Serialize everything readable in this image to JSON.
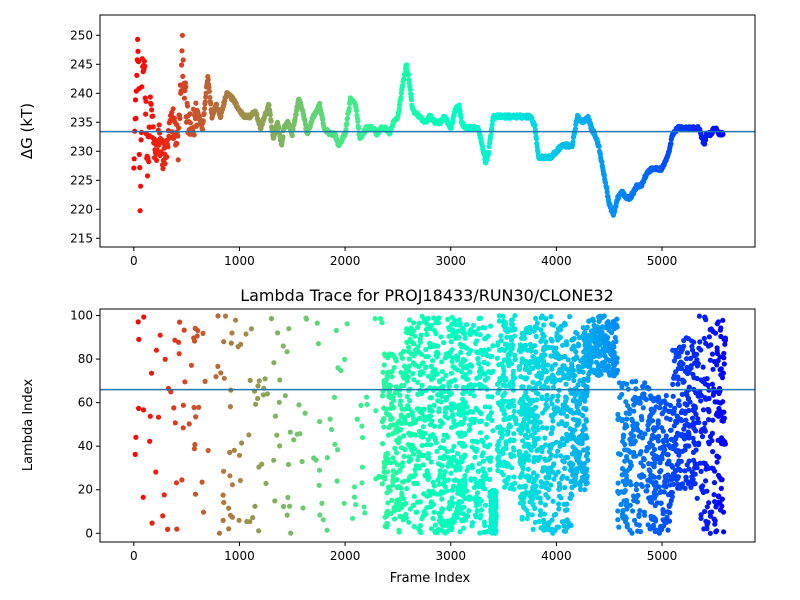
{
  "chart_data": [
    {
      "type": "scatter",
      "title": "",
      "xlabel": "",
      "ylabel": "ΔG (kT)",
      "xlim": [
        -320,
        5880
      ],
      "ylim": [
        213.5,
        253.5
      ],
      "xticks": [
        0,
        1000,
        2000,
        3000,
        4000,
        5000
      ],
      "yticks": [
        215,
        220,
        225,
        230,
        235,
        240,
        245,
        250
      ],
      "reference_line": 233.4,
      "reference_color": "#1f77b4",
      "colormap": "rainbow_r",
      "series": [
        {
          "kind": "random_walk",
          "x": [
            0,
            20,
            40,
            60,
            80,
            100,
            130,
            160,
            200,
            240,
            280,
            320,
            360,
            420,
            460,
            500,
            540,
            600,
            650,
            700,
            740,
            780,
            820,
            880,
            940,
            1000,
            1050,
            1100,
            1150,
            1200,
            1240,
            1280,
            1320,
            1360,
            1400,
            1420,
            1460,
            1500,
            1560,
            1600,
            1640,
            1700,
            1760,
            1800,
            1860,
            1900,
            1940,
            2000,
            2050,
            2100,
            2140,
            2200,
            2260,
            2300,
            2340,
            2380,
            2420,
            2460,
            2500,
            2540,
            2580,
            2600,
            2640,
            2700,
            2760,
            2800,
            2860,
            2900,
            2940,
            3000,
            3040,
            3080,
            3100,
            3140,
            3200,
            3260,
            3300,
            3330,
            3360,
            3400,
            3450,
            3500,
            3560,
            3600,
            3650,
            3700,
            3760,
            3800,
            3830,
            3860,
            3900,
            3950,
            4000,
            4050,
            4100,
            4150,
            4180,
            4200,
            4250,
            4300,
            4330,
            4360,
            4400,
            4450,
            4500,
            4540,
            4580,
            4620,
            4660,
            4700,
            4760,
            4800,
            4850,
            4900,
            4950,
            5000,
            5050,
            5080,
            5100,
            5150,
            5200,
            5250,
            5300,
            5350,
            5400,
            5420,
            5460,
            5500,
            5540,
            5580
          ],
          "y": [
            230,
            238,
            250,
            220,
            243,
            246,
            227,
            238,
            229,
            232,
            229,
            230,
            236,
            231,
            247,
            236,
            233,
            237,
            234,
            243,
            236,
            238,
            236,
            240,
            239,
            237,
            236,
            236,
            237,
            234,
            236,
            238,
            232,
            235,
            231,
            234,
            235,
            233,
            239,
            237,
            233,
            236,
            238,
            234,
            233,
            233,
            231,
            233,
            239,
            238,
            232,
            234,
            234,
            233,
            234,
            234,
            233,
            235,
            236,
            241,
            245,
            243,
            237,
            236,
            235,
            236,
            235,
            235,
            236,
            234,
            237,
            238,
            235,
            234,
            234,
            234,
            231,
            228,
            230,
            236,
            236,
            236,
            236,
            236,
            236,
            236,
            236,
            234,
            229,
            229,
            229,
            229,
            230,
            231,
            231,
            231,
            234,
            236,
            235,
            236,
            234,
            233,
            231,
            226,
            221,
            219,
            222,
            223,
            222,
            222,
            224,
            224,
            226,
            227,
            227,
            227,
            229,
            231,
            233,
            234,
            234,
            234,
            234,
            234,
            231,
            233,
            233,
            234,
            233,
            233
          ]
        }
      ]
    },
    {
      "type": "scatter",
      "title": "Lambda Trace for PROJ18433/RUN30/CLONE32",
      "xlabel": "Frame Index",
      "ylabel": "Lambda Index",
      "xlim": [
        -320,
        5880
      ],
      "ylim": [
        -4,
        103
      ],
      "xticks": [
        0,
        1000,
        2000,
        3000,
        4000,
        5000
      ],
      "yticks": [
        0,
        20,
        40,
        60,
        80,
        100
      ],
      "reference_line": 66,
      "reference_color": "#1f77b4",
      "colormap": "rainbow_r",
      "series": [
        {
          "kind": "lambda_bands",
          "bands": [
            [
              0,
              2350,
              0,
              100
            ],
            [
              2350,
              2580,
              0,
              85
            ],
            [
              2580,
              2800,
              0,
              100
            ],
            [
              2800,
              3000,
              0,
              100
            ],
            [
              3000,
              3150,
              0,
              100
            ],
            [
              3150,
              3400,
              0,
              100
            ],
            [
              3380,
              3430,
              0,
              20
            ],
            [
              3440,
              3620,
              20,
              100
            ],
            [
              3640,
              3780,
              5,
              95
            ],
            [
              3780,
              3950,
              0,
              100
            ],
            [
              3950,
              4150,
              0,
              100
            ],
            [
              4150,
              4300,
              20,
              95
            ],
            [
              4300,
              4580,
              72,
              100
            ],
            [
              4580,
              4880,
              0,
              70
            ],
            [
              4880,
              5100,
              0,
              65
            ],
            [
              5100,
              5330,
              20,
              90
            ],
            [
              5330,
              5600,
              0,
              100
            ]
          ],
          "points_per_band": 180
        }
      ]
    }
  ]
}
